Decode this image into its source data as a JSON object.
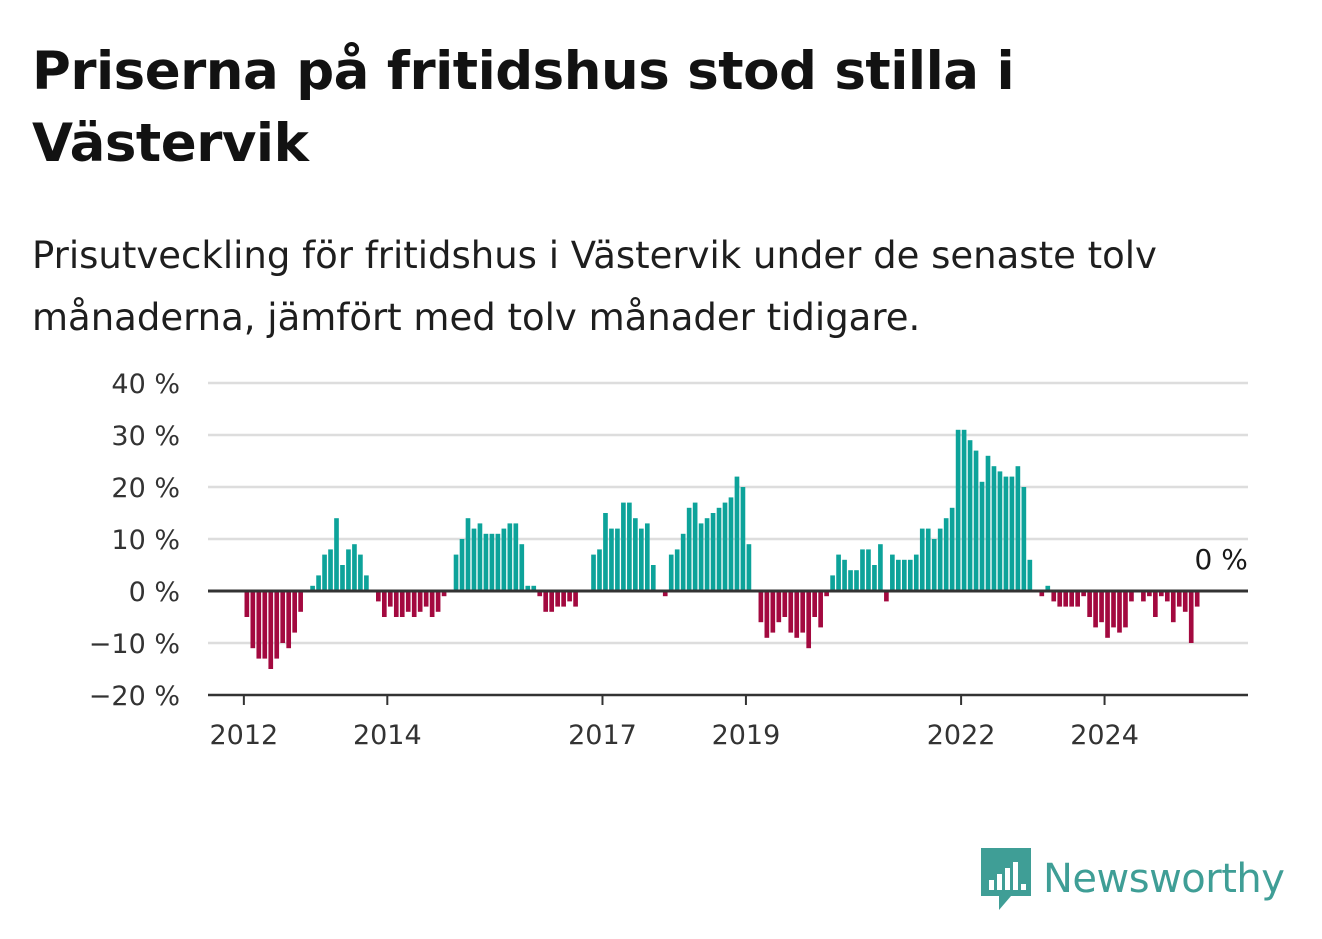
{
  "title": "Priserna på fritidshus stod stilla i Västervik",
  "subtitle": "Prisutveckling för fritidshus i Västervik under de senaste tolv månaderna, jämfört med tolv månader tidigare.",
  "brand": "Newsworthy",
  "colors": {
    "positive": "#0da39a",
    "negative": "#a3093f",
    "grid": "#dddddd",
    "axis": "#333333",
    "brand": "#3f9e96"
  },
  "chart_data": {
    "type": "bar",
    "title": "Priserna på fritidshus stod stilla i Västervik",
    "xlabel": "",
    "ylabel": "",
    "ylim": [
      -20,
      40
    ],
    "y_ticks": [
      -20,
      -10,
      0,
      10,
      20,
      30,
      40
    ],
    "y_tick_labels": [
      "−20 %",
      "−10 %",
      "0 %",
      "10 %",
      "20 %",
      "30 %",
      "40 %"
    ],
    "x_ticks": [
      2012,
      2014,
      2017,
      2019,
      2022,
      2024
    ],
    "x_tick_labels": [
      "2012",
      "2014",
      "2017",
      "2019",
      "2022",
      "2024"
    ],
    "x_range": [
      "2011-07",
      "2025-12"
    ],
    "grid": true,
    "last_value_label": "0 %",
    "series": [
      {
        "start": "2011-07",
        "frequency": "monthly",
        "values": [
          0,
          0,
          0,
          0,
          0,
          0,
          -5,
          -11,
          -13,
          -13,
          -15,
          -13,
          -10,
          -11,
          -8,
          -4,
          0,
          1,
          3,
          7,
          8,
          14,
          5,
          8,
          9,
          7,
          3,
          0,
          -2,
          -5,
          -3,
          -5,
          -5,
          -4,
          -5,
          -4,
          -3,
          -5,
          -4,
          -1,
          0,
          7,
          10,
          14,
          12,
          13,
          11,
          11,
          11,
          12,
          13,
          13,
          9,
          1,
          1,
          -1,
          -4,
          -4,
          -3,
          -3,
          -2,
          -3,
          0,
          0,
          7,
          8,
          15,
          12,
          12,
          17,
          17,
          14,
          12,
          13,
          5,
          0,
          -1,
          7,
          8,
          11,
          16,
          17,
          13,
          14,
          15,
          16,
          17,
          18,
          22,
          20,
          9,
          0,
          -6,
          -9,
          -8,
          -6,
          -5,
          -8,
          -9,
          -8,
          -11,
          -5,
          -7,
          -1,
          3,
          7,
          6,
          4,
          4,
          8,
          8,
          5,
          9,
          -2,
          7,
          6,
          6,
          6,
          7,
          12,
          12,
          10,
          12,
          14,
          16,
          31,
          31,
          29,
          27,
          21,
          26,
          24,
          23,
          22,
          22,
          24,
          20,
          6,
          0,
          -1,
          1,
          -2,
          -3,
          -3,
          -3,
          -3,
          -1,
          -5,
          -7,
          -6,
          -9,
          -7,
          -8,
          -7,
          -2,
          0,
          -2,
          -1,
          -5,
          -1,
          -2,
          -6,
          -3,
          -4,
          -10,
          -3,
          0
        ]
      }
    ]
  }
}
